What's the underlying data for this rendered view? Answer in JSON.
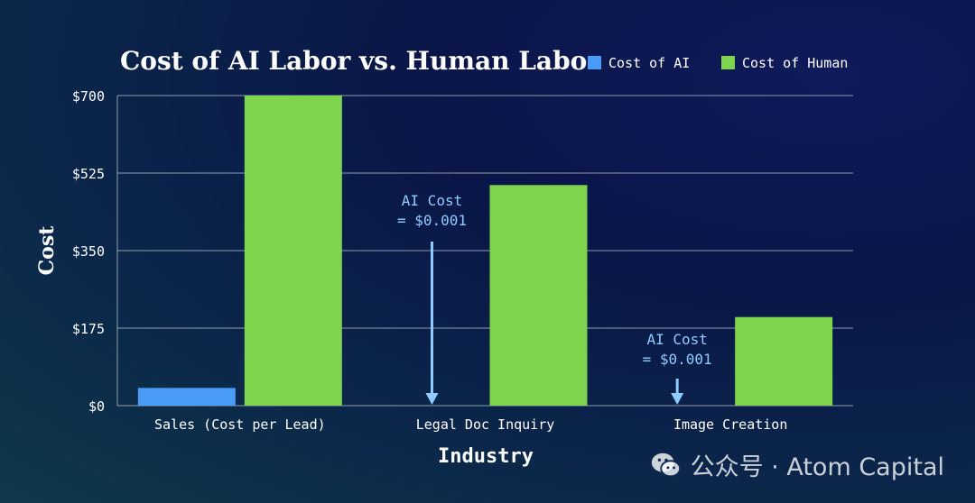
{
  "chart_data": {
    "type": "bar",
    "title": "Cost of AI Labor vs. Human Labor",
    "xlabel": "Industry",
    "ylabel": "Cost",
    "ylim": [
      0,
      700
    ],
    "yticks": [
      0,
      175,
      350,
      525,
      700
    ],
    "ytick_labels": [
      "$0",
      "$175",
      "$350",
      "$525",
      "$700"
    ],
    "categories": [
      "Sales (Cost per Lead)",
      "Legal Doc Inquiry",
      "Image Creation"
    ],
    "series": [
      {
        "name": "Cost of AI",
        "color": "#4a9bf5",
        "values": [
          40,
          0.001,
          0.001
        ]
      },
      {
        "name": "Cost of Human",
        "color": "#7fd44e",
        "values": [
          700,
          498,
          200
        ]
      }
    ],
    "grid": true,
    "legend": "top-right",
    "annotations": [
      {
        "line1": "AI Cost",
        "line2": "= $0.001",
        "category": 1
      },
      {
        "line1": "AI Cost",
        "line2": "= $0.001",
        "category": 2
      }
    ]
  },
  "watermark": {
    "text": "公众号 · Atom Capital",
    "icon": "wechat-icon"
  }
}
